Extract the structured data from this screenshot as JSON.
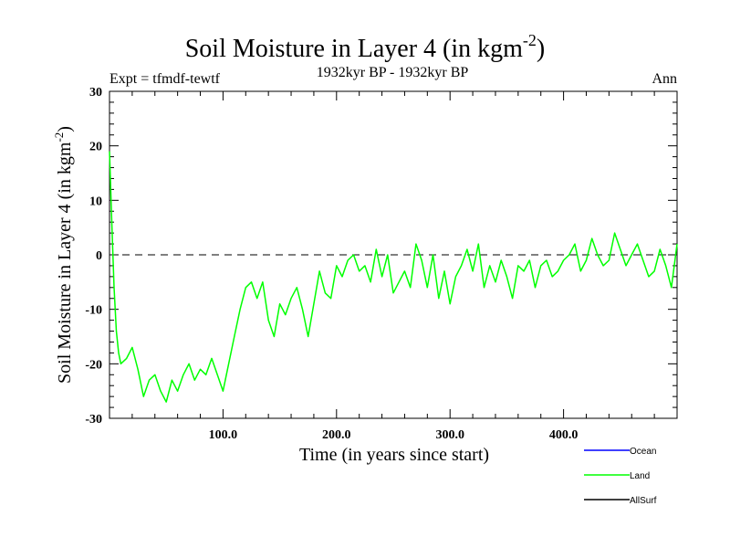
{
  "chart_data": {
    "type": "line",
    "title": "Soil Moisture in Layer 4 (in kgm",
    "title_superscript": "-2",
    "title_suffix": ")",
    "subtitle": "1932kyr BP - 1932kyr BP",
    "left_note": "Expt = tfmdf-tewtf",
    "right_note": "Ann",
    "xlabel": "Time (in years since start)",
    "ylabel": "Soil Moisture in Layer 4 (in kgm",
    "ylabel_superscript": "-2",
    "ylabel_suffix": ")",
    "xlim": [
      0,
      500
    ],
    "ylim": [
      -30,
      30
    ],
    "x_ticks": [
      100,
      200,
      300,
      400
    ],
    "x_tick_labels": [
      "100.0",
      "200.0",
      "300.0",
      "400.0"
    ],
    "y_ticks": [
      -30,
      -20,
      -10,
      0,
      10,
      20,
      30
    ],
    "y_tick_labels": [
      "-30",
      "-20",
      "-10",
      "0",
      "10",
      "20",
      "30"
    ],
    "zero_line": true,
    "legend": [
      {
        "name": "Ocean",
        "color": "#0000ff"
      },
      {
        "name": "Land",
        "color": "#00ff00"
      },
      {
        "name": "AllSurf",
        "color": "#000000"
      }
    ],
    "series": [
      {
        "name": "Land",
        "color": "#00ff00",
        "x": [
          0,
          2,
          4,
          6,
          8,
          10,
          15,
          20,
          25,
          30,
          35,
          40,
          45,
          50,
          55,
          60,
          65,
          70,
          75,
          80,
          85,
          90,
          95,
          100,
          105,
          110,
          115,
          120,
          125,
          130,
          135,
          140,
          145,
          150,
          155,
          160,
          165,
          170,
          175,
          180,
          185,
          190,
          195,
          200,
          205,
          210,
          215,
          220,
          225,
          230,
          235,
          240,
          245,
          250,
          255,
          260,
          265,
          270,
          275,
          280,
          285,
          290,
          295,
          300,
          305,
          310,
          315,
          320,
          325,
          330,
          335,
          340,
          345,
          350,
          355,
          360,
          365,
          370,
          375,
          380,
          385,
          390,
          395,
          400,
          405,
          410,
          415,
          420,
          425,
          430,
          435,
          440,
          445,
          450,
          455,
          460,
          465,
          470,
          475,
          480,
          485,
          490,
          495,
          500
        ],
        "values": [
          19,
          6,
          -6,
          -14,
          -18,
          -20,
          -19,
          -17,
          -21,
          -26,
          -23,
          -22,
          -25,
          -27,
          -23,
          -25,
          -22,
          -20,
          -23,
          -21,
          -22,
          -19,
          -22,
          -25,
          -20,
          -15,
          -10,
          -6,
          -5,
          -8,
          -5,
          -12,
          -15,
          -9,
          -11,
          -8,
          -6,
          -10,
          -15,
          -9,
          -3,
          -7,
          -8,
          -2,
          -4,
          -1,
          0,
          -3,
          -2,
          -5,
          1,
          -4,
          0,
          -7,
          -5,
          -3,
          -6,
          2,
          -1,
          -6,
          0,
          -8,
          -3,
          -9,
          -4,
          -2,
          1,
          -3,
          2,
          -6,
          -2,
          -5,
          -1,
          -4,
          -8,
          -2,
          -3,
          -1,
          -6,
          -2,
          -1,
          -4,
          -3,
          -1,
          0,
          2,
          -3,
          -1,
          3,
          0,
          -2,
          -1,
          4,
          1,
          -2,
          0,
          2,
          -1,
          -4,
          -3,
          1,
          -2,
          -6,
          2
        ]
      }
    ]
  }
}
